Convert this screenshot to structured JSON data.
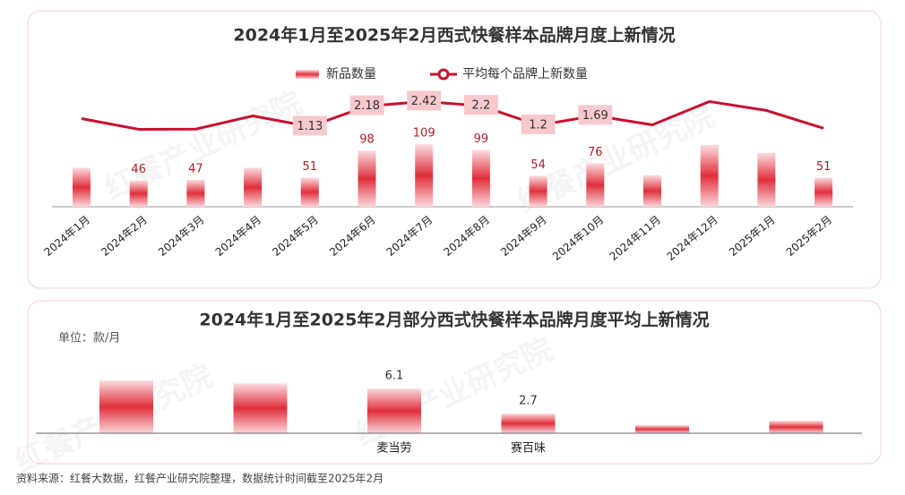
{
  "watermark": "红餐产业研究院",
  "source": "资料来源：红餐大数据，红餐产业研究院整理，数据统计时间截至2025年2月",
  "chart_data": [
    {
      "type": "combo",
      "title": "2024年1月至2025年2月西式快餐样本品牌月度上新情况",
      "categories": [
        "2024年1月",
        "2024年2月",
        "2024年3月",
        "2024年4月",
        "2024年5月",
        "2024年6月",
        "2024年7月",
        "2024年8月",
        "2024年9月",
        "2024年10月",
        "2024年11月",
        "2024年12月",
        "2025年1月",
        "2025年2月"
      ],
      "series": [
        {
          "name": "新品数量",
          "type": "bar",
          "color": "#e0303c",
          "values": [
            68,
            46,
            47,
            68,
            51,
            98,
            109,
            99,
            54,
            76,
            55,
            108,
            94,
            51
          ],
          "value_labels": [
            null,
            "46",
            "47",
            null,
            "51",
            "98",
            "109",
            "99",
            "54",
            "76",
            null,
            null,
            null,
            "51"
          ]
        },
        {
          "name": "平均每个品牌上新数量",
          "type": "line",
          "color": "#c8102e",
          "axis": "y2",
          "values": [
            1.54,
            0.99,
            1.0,
            1.68,
            1.13,
            2.18,
            2.42,
            2.2,
            1.2,
            1.69,
            1.22,
            2.42,
            1.96,
            1.04
          ],
          "value_labels": [
            null,
            null,
            null,
            null,
            "1.13",
            "2.18",
            "2.42",
            "2.2",
            "1.2",
            "1.69",
            null,
            null,
            null,
            null
          ]
        }
      ],
      "ylim": [
        0,
        220
      ],
      "y2lim": [
        -3,
        3.5
      ],
      "legend": "top"
    },
    {
      "type": "bar",
      "title": "2024年1月至2025年2月部分西式快餐样本品牌月度平均上新情况",
      "unit_label": "单位：款/月",
      "categories": [
        null,
        null,
        "麦当劳",
        "赛百味",
        null,
        null
      ],
      "values": [
        7.2,
        6.8,
        6.1,
        2.7,
        1.1,
        1.7
      ],
      "value_labels": [
        null,
        null,
        "6.1",
        "2.7",
        null,
        null
      ],
      "color": "#e0303c",
      "ylim": [
        0,
        10
      ]
    }
  ]
}
